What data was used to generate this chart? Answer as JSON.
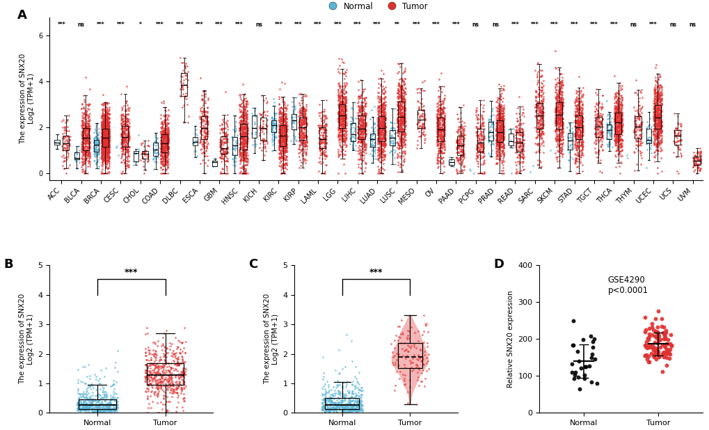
{
  "cancer_types": [
    "ACC",
    "BLCA",
    "BRCA",
    "CESC",
    "CHOL",
    "COAD",
    "DLBC",
    "ESCA",
    "GBM",
    "HNSC",
    "KICH",
    "KIRC",
    "KIRP",
    "LAML",
    "LGG",
    "LIHC",
    "LUAD",
    "LUSC",
    "MESO",
    "OV",
    "PAAD",
    "PCPG",
    "PRAD",
    "READ",
    "SARC",
    "SKCM",
    "STAD",
    "TGCT",
    "THCA",
    "THYM",
    "UCEC",
    "UCS",
    "UVM"
  ],
  "sig_labels": [
    "***",
    "ns",
    "***",
    "***",
    "*",
    "***",
    "***",
    "***",
    "***",
    "***",
    "ns",
    "***",
    "***",
    "***",
    "***",
    "***",
    "***",
    "**",
    "***",
    "***",
    "***",
    "ns",
    "ns",
    "***",
    "***",
    "***",
    "***",
    "***",
    "***",
    "ns",
    "***",
    "ns",
    "ns"
  ],
  "normal_color": "#5ab4d6",
  "tumor_color": "#e03030",
  "panel_A_ylabel": "The expression of SNX20\nLog2 (TPM+1)",
  "panel_A_ylim": [
    -0.3,
    6.8
  ],
  "panel_A_yticks": [
    0,
    2,
    4,
    6
  ],
  "panel_B_ylabel": "The expression of SNX20\nLog2 (TPM+1)",
  "panel_B_ylim": [
    0,
    5
  ],
  "panel_B_yticks": [
    0,
    1,
    2,
    3,
    4,
    5
  ],
  "panel_C_ylabel": "The expression of SNX20\nLog2 (TPM+1)",
  "panel_C_ylim": [
    0,
    5
  ],
  "panel_C_yticks": [
    0,
    1,
    2,
    3,
    4,
    5
  ],
  "panel_D_ylabel": "Relative SNX20 expression",
  "panel_D_ylim": [
    0,
    400
  ],
  "panel_D_yticks": [
    0,
    100,
    200,
    300,
    400
  ],
  "panel_D_annotation": "GSE4290\np<0.0001",
  "legend_normal": "Normal",
  "legend_tumor": "Tumor"
}
